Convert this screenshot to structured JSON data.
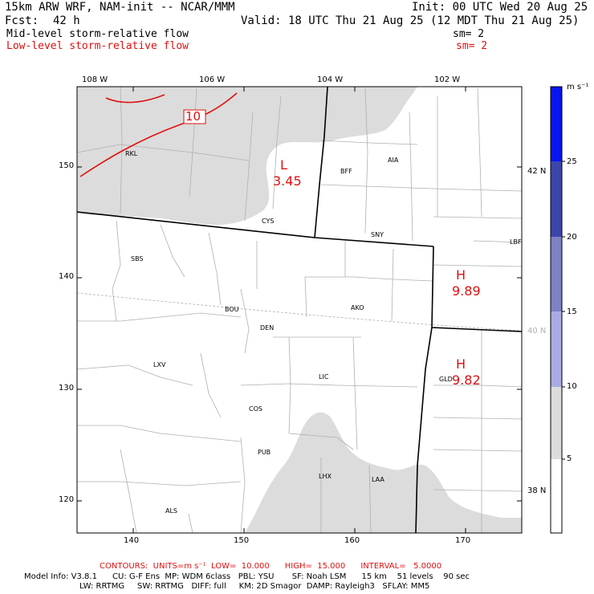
{
  "header": {
    "model": "15km ARW WRF, NAM-init -- NCAR/MMM",
    "init": "Init: 00 UTC Wed 20 Aug 25",
    "fcst_label": "Fcst:",
    "fcst_value": "42 h",
    "valid": "Valid: 18 UTC Thu 21 Aug 25 (12 MDT Thu 21 Aug 25)",
    "field1": "Mid-level storm-relative flow",
    "field1_sm": "sm= 2",
    "field2": "Low-level storm-relative flow",
    "field2_sm": "sm= 2"
  },
  "map": {
    "lon_labels": [
      "108 W",
      "106 W",
      "104 W",
      "102 W"
    ],
    "lat_labels": [
      "42 N",
      "40 N",
      "38 N"
    ],
    "x_ticks": [
      "140",
      "150",
      "160",
      "170"
    ],
    "y_ticks": [
      "150",
      "140",
      "130",
      "120"
    ],
    "stations": [
      "RKL",
      "BFF",
      "AIA",
      "CYS",
      "SNY",
      "LBF",
      "SBS",
      "BOU",
      "DEN",
      "AKO",
      "LXV",
      "LIC",
      "GLD",
      "COS",
      "PUB",
      "LHX",
      "LAA",
      "ALS"
    ],
    "pressure_centers": [
      {
        "symbol": "L",
        "value": "3.45"
      },
      {
        "symbol": "H",
        "value": "9.89"
      },
      {
        "symbol": "H",
        "value": "9.82"
      }
    ],
    "contour_label": "10",
    "shading_color": "#dcdcdc",
    "contour_color": "#e01010"
  },
  "colorbar": {
    "unit": "m s⁻¹",
    "tick_labels": [
      "25",
      "20",
      "15",
      "10",
      "5"
    ],
    "colors": [
      "#0a14f0",
      "#3c46aa",
      "#7c82c4",
      "#aaaae6",
      "#dcdcdc",
      "#ffffff"
    ]
  },
  "footer": {
    "contours": "CONTOURS:  UNITS=m s⁻¹  LOW=  10.000      HIGH=  15.000      INTERVAL=   5.0000",
    "model_info": "Model Info: V3.8.1      CU: G-F Ens  MP: WDM 6class   PBL: YSU       SF: Noah LSM      15 km    51 levels    90 sec",
    "model_info2": "LW: RRTMG     SW: RRTMG   DIFF: full     KM: 2D Smagor  DAMP: Rayleigh3   SFLAY: MM5"
  }
}
